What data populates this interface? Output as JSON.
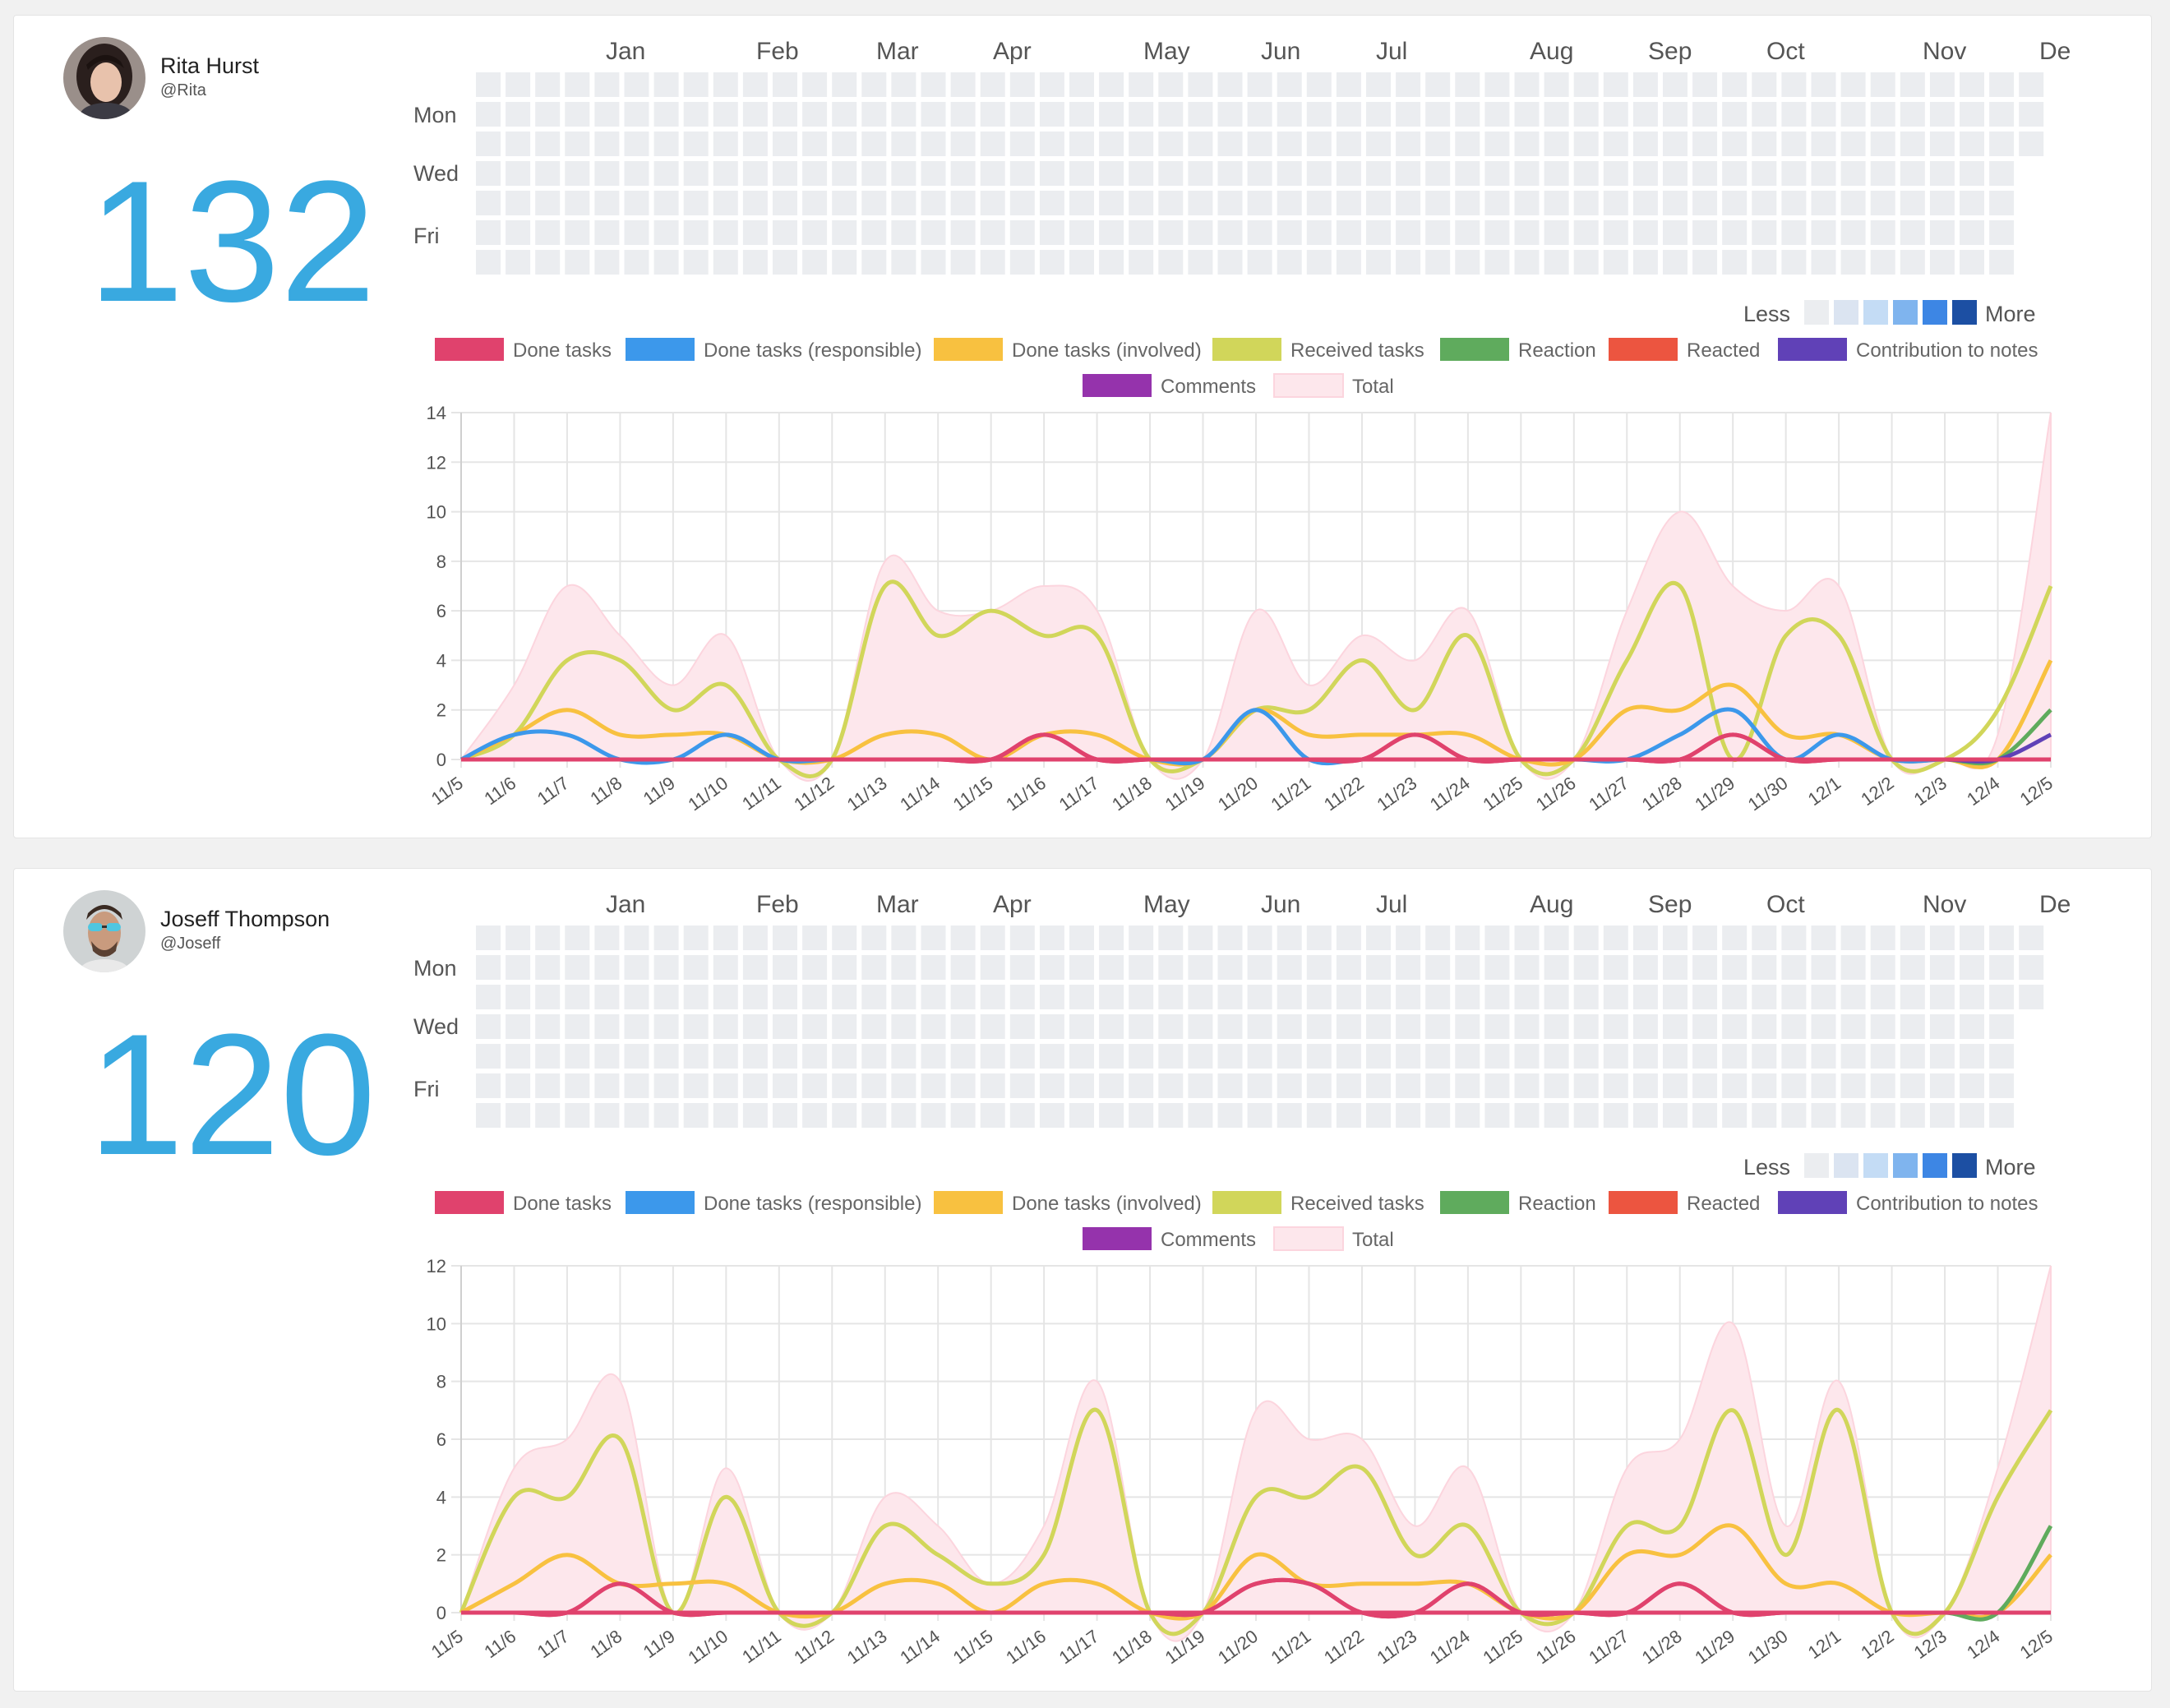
{
  "colors": {
    "accent": "#39a9e0",
    "heat_levels": [
      "#ebedf0",
      "#dbe4f1",
      "#c4dcf5",
      "#7fb4ee",
      "#3d86e4",
      "#1c4fa3"
    ],
    "series": {
      "done": "#e0426d",
      "responsible": "#3c98eb",
      "involved": "#f8c140",
      "received": "#d1d65a",
      "reaction": "#5fab5d",
      "reacted": "#ec5540",
      "notes": "#6041b7",
      "comments": "#9533ac",
      "total": "#fde7ec"
    }
  },
  "heatmap_labels": {
    "months": [
      "Jan",
      "Feb",
      "Mar",
      "Apr",
      "May",
      "Jun",
      "Jul",
      "Aug",
      "Sep",
      "Oct",
      "Nov",
      "De"
    ],
    "days": [
      "Mon",
      "Wed",
      "Fri"
    ],
    "less": "Less",
    "more": "More"
  },
  "legend": {
    "done": "Done tasks",
    "responsible": "Done tasks (responsible)",
    "involved": "Done tasks (involved)",
    "received": "Received tasks",
    "reaction": "Reaction",
    "reacted": "Reacted",
    "notes": "Contribution to notes",
    "comments": "Comments",
    "total": "Total"
  },
  "users": [
    {
      "name": "Rita Hurst",
      "handle": "@Rita",
      "count": "132",
      "heatmap": {
        "active": [
          [
            62,
            1,
            2
          ],
          [
            63,
            1,
            2
          ],
          [
            64,
            1,
            2
          ],
          [
            65,
            1,
            2
          ],
          [
            62,
            2,
            1
          ],
          [
            63,
            2,
            1
          ],
          [
            64,
            2,
            1
          ],
          [
            65,
            2,
            2
          ],
          [
            61,
            3,
            2
          ],
          [
            62,
            3,
            4
          ],
          [
            63,
            3,
            2
          ],
          [
            64,
            3,
            2
          ],
          [
            65,
            3,
            2
          ],
          [
            61,
            4,
            2
          ],
          [
            62,
            4,
            1
          ],
          [
            63,
            4,
            2
          ],
          [
            64,
            4,
            1
          ],
          [
            62,
            5,
            2
          ],
          [
            63,
            5,
            2
          ],
          [
            64,
            5,
            3
          ],
          [
            65,
            5,
            1
          ],
          [
            62,
            6,
            1
          ],
          [
            63,
            6,
            1
          ],
          [
            64,
            6,
            1
          ],
          [
            65,
            6,
            1
          ]
        ]
      },
      "chart_data": {
        "type": "line",
        "x": [
          "11/5",
          "11/6",
          "11/7",
          "11/8",
          "11/9",
          "11/10",
          "11/11",
          "11/12",
          "11/13",
          "11/14",
          "11/15",
          "11/16",
          "11/17",
          "11/18",
          "11/19",
          "11/20",
          "11/21",
          "11/22",
          "11/23",
          "11/24",
          "11/25",
          "11/26",
          "11/27",
          "11/28",
          "11/29",
          "11/30",
          "12/1",
          "12/2",
          "12/3",
          "12/4",
          "12/5"
        ],
        "ylim": [
          0,
          14
        ],
        "yticks": [
          0,
          2,
          4,
          6,
          8,
          10,
          12,
          14
        ],
        "series": [
          {
            "name": "Total",
            "key": "total",
            "values": [
              0,
              3,
              7,
              5,
              3,
              5,
              0,
              0,
              8,
              6,
              6,
              7,
              6,
              0,
              0,
              6,
              3,
              5,
              4,
              6,
              0,
              0,
              6,
              10,
              7,
              6,
              7,
              0,
              0,
              1,
              14
            ]
          },
          {
            "name": "Received tasks",
            "key": "received",
            "values": [
              0,
              1,
              4,
              4,
              2,
              3,
              0,
              0,
              7,
              5,
              6,
              5,
              5,
              0,
              0,
              2,
              2,
              4,
              2,
              5,
              0,
              0,
              4,
              7,
              0,
              5,
              5,
              0,
              0,
              2,
              7
            ]
          },
          {
            "name": "Done tasks (involved)",
            "key": "involved",
            "values": [
              0,
              1,
              2,
              1,
              1,
              1,
              0,
              0,
              1,
              1,
              0,
              1,
              1,
              0,
              0,
              2,
              1,
              1,
              1,
              1,
              0,
              0,
              2,
              2,
              3,
              1,
              1,
              0,
              0,
              0,
              4
            ]
          },
          {
            "name": "Done tasks (responsible)",
            "key": "responsible",
            "values": [
              0,
              1,
              1,
              0,
              0,
              1,
              0,
              0,
              0,
              0,
              0,
              0,
              0,
              0,
              0,
              2,
              0,
              0,
              0,
              0,
              0,
              0,
              0,
              1,
              2,
              0,
              1,
              0,
              0,
              0,
              0
            ]
          },
          {
            "name": "Reaction",
            "key": "reaction",
            "values": [
              0,
              0,
              0,
              0,
              0,
              0,
              0,
              0,
              0,
              0,
              0,
              0,
              0,
              0,
              0,
              0,
              0,
              0,
              0,
              0,
              0,
              0,
              0,
              0,
              0,
              0,
              0,
              0,
              0,
              0,
              2
            ]
          },
          {
            "name": "Contribution to notes",
            "key": "notes",
            "values": [
              0,
              0,
              0,
              0,
              0,
              0,
              0,
              0,
              0,
              0,
              0,
              0,
              0,
              0,
              0,
              0,
              0,
              0,
              0,
              0,
              0,
              0,
              0,
              0,
              0,
              0,
              0,
              0,
              0,
              0,
              1
            ]
          },
          {
            "name": "Done tasks",
            "key": "done",
            "values": [
              0,
              0,
              0,
              0,
              0,
              0,
              0,
              0,
              0,
              0,
              0,
              1,
              0,
              0,
              0,
              0,
              0,
              0,
              1,
              0,
              0,
              0,
              0,
              0,
              1,
              0,
              0,
              0,
              0,
              0,
              0
            ]
          }
        ]
      }
    },
    {
      "name": "Joseff Thompson",
      "handle": "@Joseff",
      "count": "120",
      "heatmap": {
        "active": [
          [
            62,
            1,
            1
          ],
          [
            63,
            1,
            2
          ],
          [
            64,
            1,
            1
          ],
          [
            65,
            1,
            1
          ],
          [
            62,
            2,
            2
          ],
          [
            63,
            2,
            1
          ],
          [
            64,
            2,
            3
          ],
          [
            65,
            2,
            3
          ],
          [
            61,
            3,
            2
          ],
          [
            62,
            3,
            2
          ],
          [
            63,
            3,
            2
          ],
          [
            64,
            3,
            2
          ],
          [
            65,
            3,
            2
          ],
          [
            61,
            4,
            1
          ],
          [
            62,
            4,
            2
          ],
          [
            63,
            4,
            1
          ],
          [
            64,
            4,
            2
          ],
          [
            61,
            5,
            2
          ],
          [
            62,
            5,
            2
          ],
          [
            63,
            5,
            1
          ],
          [
            64,
            5,
            2
          ]
        ]
      },
      "chart_data": {
        "type": "line",
        "x": [
          "11/5",
          "11/6",
          "11/7",
          "11/8",
          "11/9",
          "11/10",
          "11/11",
          "11/12",
          "11/13",
          "11/14",
          "11/15",
          "11/16",
          "11/17",
          "11/18",
          "11/19",
          "11/20",
          "11/21",
          "11/22",
          "11/23",
          "11/24",
          "11/25",
          "11/26",
          "11/27",
          "11/28",
          "11/29",
          "11/30",
          "12/1",
          "12/2",
          "12/3",
          "12/4",
          "12/5"
        ],
        "ylim": [
          0,
          12
        ],
        "yticks": [
          0,
          2,
          4,
          6,
          8,
          10,
          12
        ],
        "series": [
          {
            "name": "Total",
            "key": "total",
            "values": [
              0,
              5,
              6,
              8,
              0,
              5,
              0,
              0,
              4,
              3,
              1,
              3,
              8,
              0,
              0,
              7,
              6,
              6,
              3,
              5,
              0,
              0,
              5,
              6,
              10,
              3,
              8,
              0,
              0,
              5,
              12
            ]
          },
          {
            "name": "Received tasks",
            "key": "received",
            "values": [
              0,
              4,
              4,
              6,
              0,
              4,
              0,
              0,
              3,
              2,
              1,
              2,
              7,
              0,
              0,
              4,
              4,
              5,
              2,
              3,
              0,
              0,
              3,
              3,
              7,
              2,
              7,
              0,
              0,
              4,
              7
            ]
          },
          {
            "name": "Done tasks (involved)",
            "key": "involved",
            "values": [
              0,
              1,
              2,
              1,
              1,
              1,
              0,
              0,
              1,
              1,
              0,
              1,
              1,
              0,
              0,
              2,
              1,
              1,
              1,
              1,
              0,
              0,
              2,
              2,
              3,
              1,
              1,
              0,
              0,
              0,
              2
            ]
          },
          {
            "name": "Reaction",
            "key": "reaction",
            "values": [
              0,
              0,
              0,
              0,
              0,
              0,
              0,
              0,
              0,
              0,
              0,
              0,
              0,
              0,
              0,
              0,
              0,
              0,
              0,
              0,
              0,
              0,
              0,
              0,
              0,
              0,
              0,
              0,
              0,
              0,
              3
            ]
          },
          {
            "name": "Done tasks",
            "key": "done",
            "values": [
              0,
              0,
              0,
              1,
              0,
              0,
              0,
              0,
              0,
              0,
              0,
              0,
              0,
              0,
              0,
              1,
              1,
              0,
              0,
              1,
              0,
              0,
              0,
              1,
              0,
              0,
              0,
              0,
              0,
              0,
              0
            ]
          }
        ]
      }
    }
  ]
}
